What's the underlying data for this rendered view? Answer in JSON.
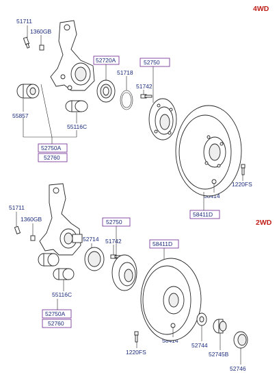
{
  "diagram": {
    "section_4wd": {
      "tag": "4WD",
      "labels": {
        "p51711": "51711",
        "p1360gb": "1360GB",
        "p52720a": "52720A",
        "p51718": "51718",
        "p52750_top": "52750",
        "p51742": "51742",
        "p55857": "55857",
        "p55116c": "55116C",
        "p52750a": "52750A",
        "p52760": "52760",
        "p1220fs": "1220FS",
        "p58414": "58414",
        "p58411d": "58411D"
      }
    },
    "section_2wd": {
      "tag": "2WD",
      "labels": {
        "p51711": "51711",
        "p1360gb": "1360GB",
        "p52750_top": "52750",
        "p52714": "52714",
        "p51742": "51742",
        "p58411d": "58411D",
        "p55116c": "55116C",
        "p52750a": "52750A",
        "p52760": "52760",
        "p58414": "58414",
        "p52744": "52744",
        "p52745b": "52745B",
        "p1220fs": "1220FS",
        "p52746": "52746"
      }
    },
    "colors": {
      "label_text": "#1a2a7a",
      "section_tag": "#c0201a",
      "callout_box": "#7a3a9a",
      "line_art": "#222222"
    }
  }
}
